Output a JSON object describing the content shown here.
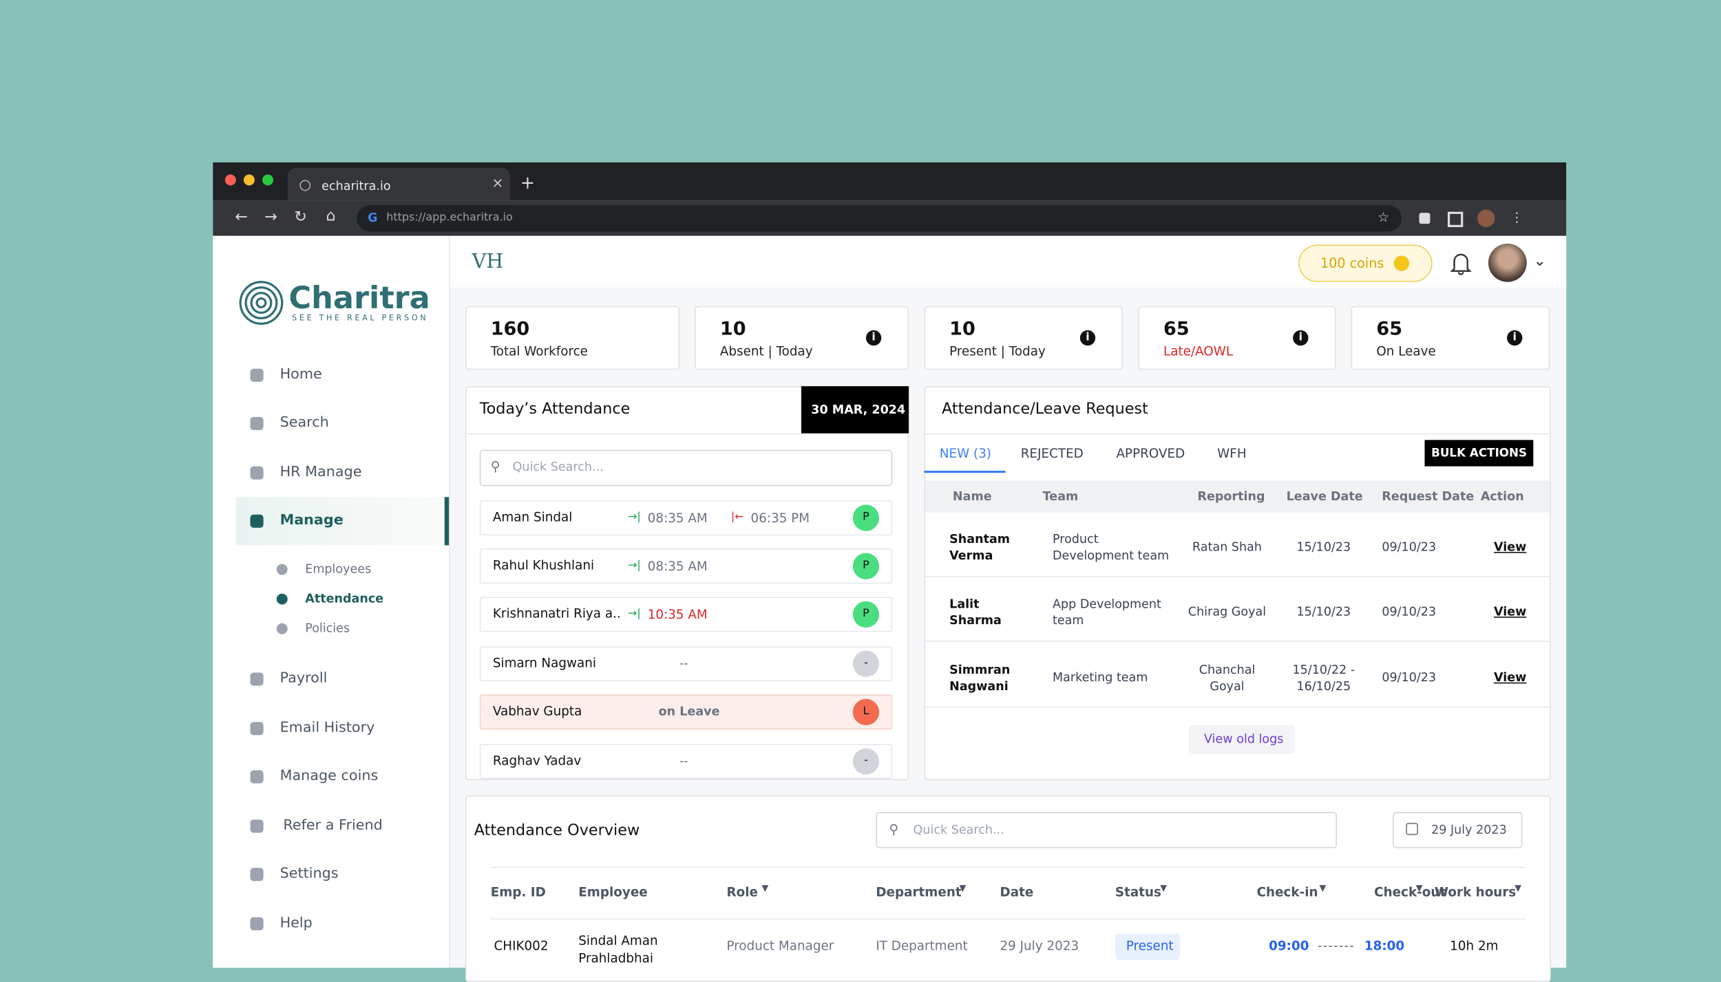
{
  "browser": {
    "tab_title": "echaritra.io",
    "url": "https://app.echaritra.io"
  },
  "sidebar": {
    "brand": "Charitra",
    "tagline": "SEE THE REAL PERSON",
    "nav": [
      "Home",
      "Search",
      "HR Manage",
      "Manage"
    ],
    "sub_nav": [
      "Employees",
      "Attendance",
      "Policies"
    ],
    "nav_bottom": [
      "Payroll",
      "Email History",
      "Manage coins",
      "Refer a Friend",
      "Settings",
      "Help"
    ]
  },
  "header": {
    "logo": "VH",
    "coins": "100 coins"
  },
  "stats": [
    {
      "value": 160,
      "label": "Total Workforce"
    },
    {
      "value": 10,
      "label": "Absent | Today"
    },
    {
      "value": 10,
      "label": "Present | Today"
    },
    {
      "value": 65,
      "label": "Late/AOWL"
    },
    {
      "value": 65,
      "label": "On Leave"
    }
  ],
  "attendance": {
    "title": "Today’s Attendance",
    "date": "30 MAR, 2024",
    "search_placeholder": "Quick Search...",
    "rows": [
      {
        "name": "Aman Sindal",
        "check_in": "08:35 AM",
        "check_out": "06:35 PM",
        "status": "P"
      },
      {
        "name": "Rahul Khushlani",
        "check_in": "08:35 AM",
        "status": "P"
      },
      {
        "name": "Krishnanatri Riya a..",
        "check_in": "10:35 AM",
        "late": true,
        "status": "P"
      },
      {
        "name": "Simarn Nagwani",
        "note": "--",
        "status": "-"
      },
      {
        "name": "Vabhav Gupta",
        "note": "on Leave",
        "status": "L"
      },
      {
        "name": "Raghav Yadav",
        "note": "--",
        "status": "-"
      }
    ]
  },
  "requests": {
    "title": "Attendance/Leave Request",
    "tabs": [
      "NEW (3)",
      "REJECTED",
      "APPROVED",
      "WFH"
    ],
    "bulk_actions": "BULK ACTIONS",
    "columns": [
      "Name",
      "Team",
      "Reporting",
      "Leave Date",
      "Request Date",
      "Action"
    ],
    "rows": [
      [
        "Shantam Verma",
        "Product Development team",
        "Ratan Shah",
        "15/10/23",
        "09/10/23",
        "View"
      ],
      [
        "Lalit Sharma",
        "App Development team",
        "Chirag Goyal",
        "15/10/23",
        "09/10/23",
        "View"
      ],
      [
        "Simmran Nagwani",
        "Marketing team",
        "Chanchal Goyal",
        "15/10/22 - 16/10/25",
        "09/10/23",
        "View"
      ]
    ],
    "view_old_logs": "View old logs"
  },
  "overview": {
    "title": "Attendance Overview",
    "search_placeholder": "Quick Search...",
    "date": "29 July 2023",
    "columns": [
      "Emp. ID",
      "Employee",
      "Role",
      "Department",
      "Date",
      "Status",
      "Check-in",
      "Check-out",
      "Work hours"
    ],
    "rows": [
      [
        "CHIK002",
        "Sindal Aman Prahladbhai",
        "Product Manager",
        "IT Department",
        "29 July 2023",
        "Present",
        "09:00",
        "18:00",
        "10h 2m"
      ]
    ]
  }
}
